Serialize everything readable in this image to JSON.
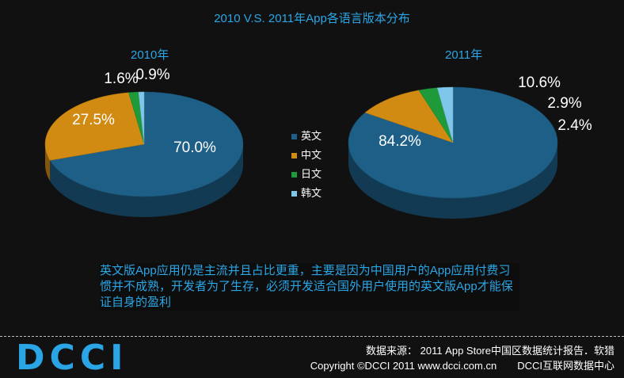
{
  "title": "2010 V.S. 2011年App各语言版本分布",
  "chart_data": [
    {
      "type": "pie",
      "title": "2010年",
      "categories": [
        "英文",
        "中文",
        "日文",
        "韩文"
      ],
      "values": [
        70.0,
        27.5,
        1.6,
        0.9
      ],
      "labels": [
        "70.0%",
        "27.5%",
        "1.6%",
        "0.9%"
      ],
      "colors": [
        "#1d5f86",
        "#d18a12",
        "#1f9a3a",
        "#7fc6ea"
      ]
    },
    {
      "type": "pie",
      "title": "2011年",
      "categories": [
        "英文",
        "中文",
        "日文",
        "韩文"
      ],
      "values": [
        84.2,
        10.6,
        2.9,
        2.4
      ],
      "labels": [
        "84.2%",
        "10.6%",
        "2.9%",
        "2.4%"
      ],
      "colors": [
        "#1d5f86",
        "#d18a12",
        "#1f9a3a",
        "#7fc6ea"
      ]
    }
  ],
  "legend": {
    "placement": "center",
    "items": [
      {
        "label": "英文",
        "color": "#1d5f86"
      },
      {
        "label": "中文",
        "color": "#d18a12"
      },
      {
        "label": "日文",
        "color": "#1f9a3a"
      },
      {
        "label": "韩文",
        "color": "#7fc6ea"
      }
    ]
  },
  "note": "英文版App应用仍是主流并且占比更重，主要是因为中国用户的App应用付费习惯并不成熟，开发者为了生存，必须开发适合国外用户使用的英文版App才能保证自身的盈利",
  "footer": {
    "logo": "DCCI",
    "source": "数据来源： 2011 App Store中国区数据统计报告．软猎",
    "copyright": "Copyright ©DCCI 2011 www.dcci.com.cn",
    "org": "DCCI互联网数据中心"
  }
}
